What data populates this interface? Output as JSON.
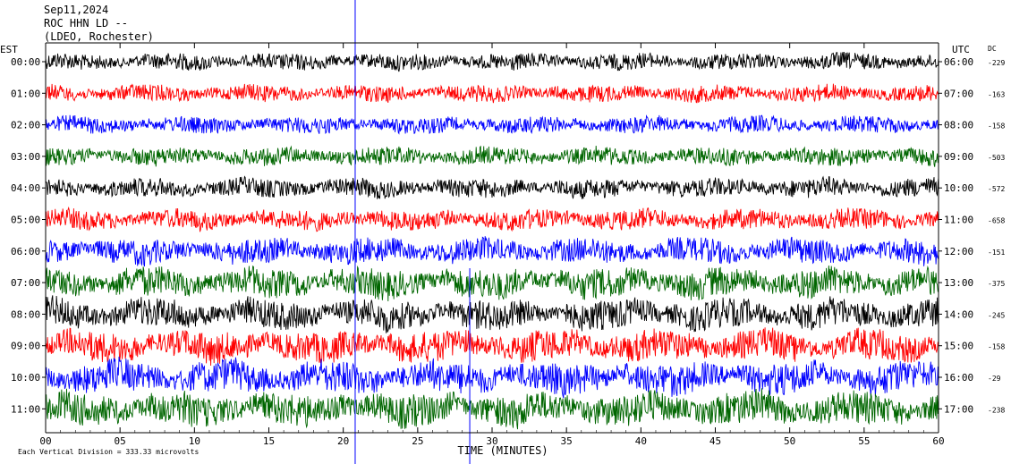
{
  "header": {
    "date": "Sep11,2024",
    "station": "ROC HHN LD --",
    "network": "(LDEO, Rochester)"
  },
  "chart_data": {
    "type": "line",
    "title": "Sep11,2024",
    "left_axis_label": "EST",
    "right_axis_label": "UTC",
    "dc_label": "DC",
    "xlabel": "TIME (MINUTES)",
    "xlim": [
      0,
      60
    ],
    "x_ticks": [
      "00",
      "05",
      "10",
      "15",
      "20",
      "25",
      "30",
      "35",
      "40",
      "45",
      "50",
      "55",
      "60"
    ],
    "footer_note": "Each Vertical Division = 333.33 microvolts",
    "trace_colors": [
      "#000000",
      "#ff0000",
      "#0000ff",
      "#006600"
    ],
    "rows": [
      {
        "est": "00:00",
        "utc": "06:00",
        "dc": "-229",
        "amp": 0.35
      },
      {
        "est": "01:00",
        "utc": "07:00",
        "dc": "-163",
        "amp": 0.35
      },
      {
        "est": "02:00",
        "utc": "08:00",
        "dc": "-158",
        "amp": 0.35
      },
      {
        "est": "03:00",
        "utc": "09:00",
        "dc": "-503",
        "amp": 0.4
      },
      {
        "est": "04:00",
        "utc": "10:00",
        "dc": "-572",
        "amp": 0.45
      },
      {
        "est": "05:00",
        "utc": "11:00",
        "dc": "-658",
        "amp": 0.5
      },
      {
        "est": "06:00",
        "utc": "12:00",
        "dc": "-151",
        "amp": 0.7
      },
      {
        "est": "07:00",
        "utc": "13:00",
        "dc": "-375",
        "amp": 0.9
      },
      {
        "est": "08:00",
        "utc": "14:00",
        "dc": "-245",
        "amp": 0.9
      },
      {
        "est": "09:00",
        "utc": "15:00",
        "dc": "-158",
        "amp": 0.95
      },
      {
        "est": "10:00",
        "utc": "16:00",
        "dc": "-29",
        "amp": 1.0
      },
      {
        "est": "11:00",
        "utc": "17:00",
        "dc": "-238",
        "amp": 1.05
      }
    ],
    "events": [
      {
        "minute": 20.8,
        "color": "#0000ff"
      },
      {
        "minute": 28.5,
        "color": "#0000ff"
      }
    ]
  }
}
